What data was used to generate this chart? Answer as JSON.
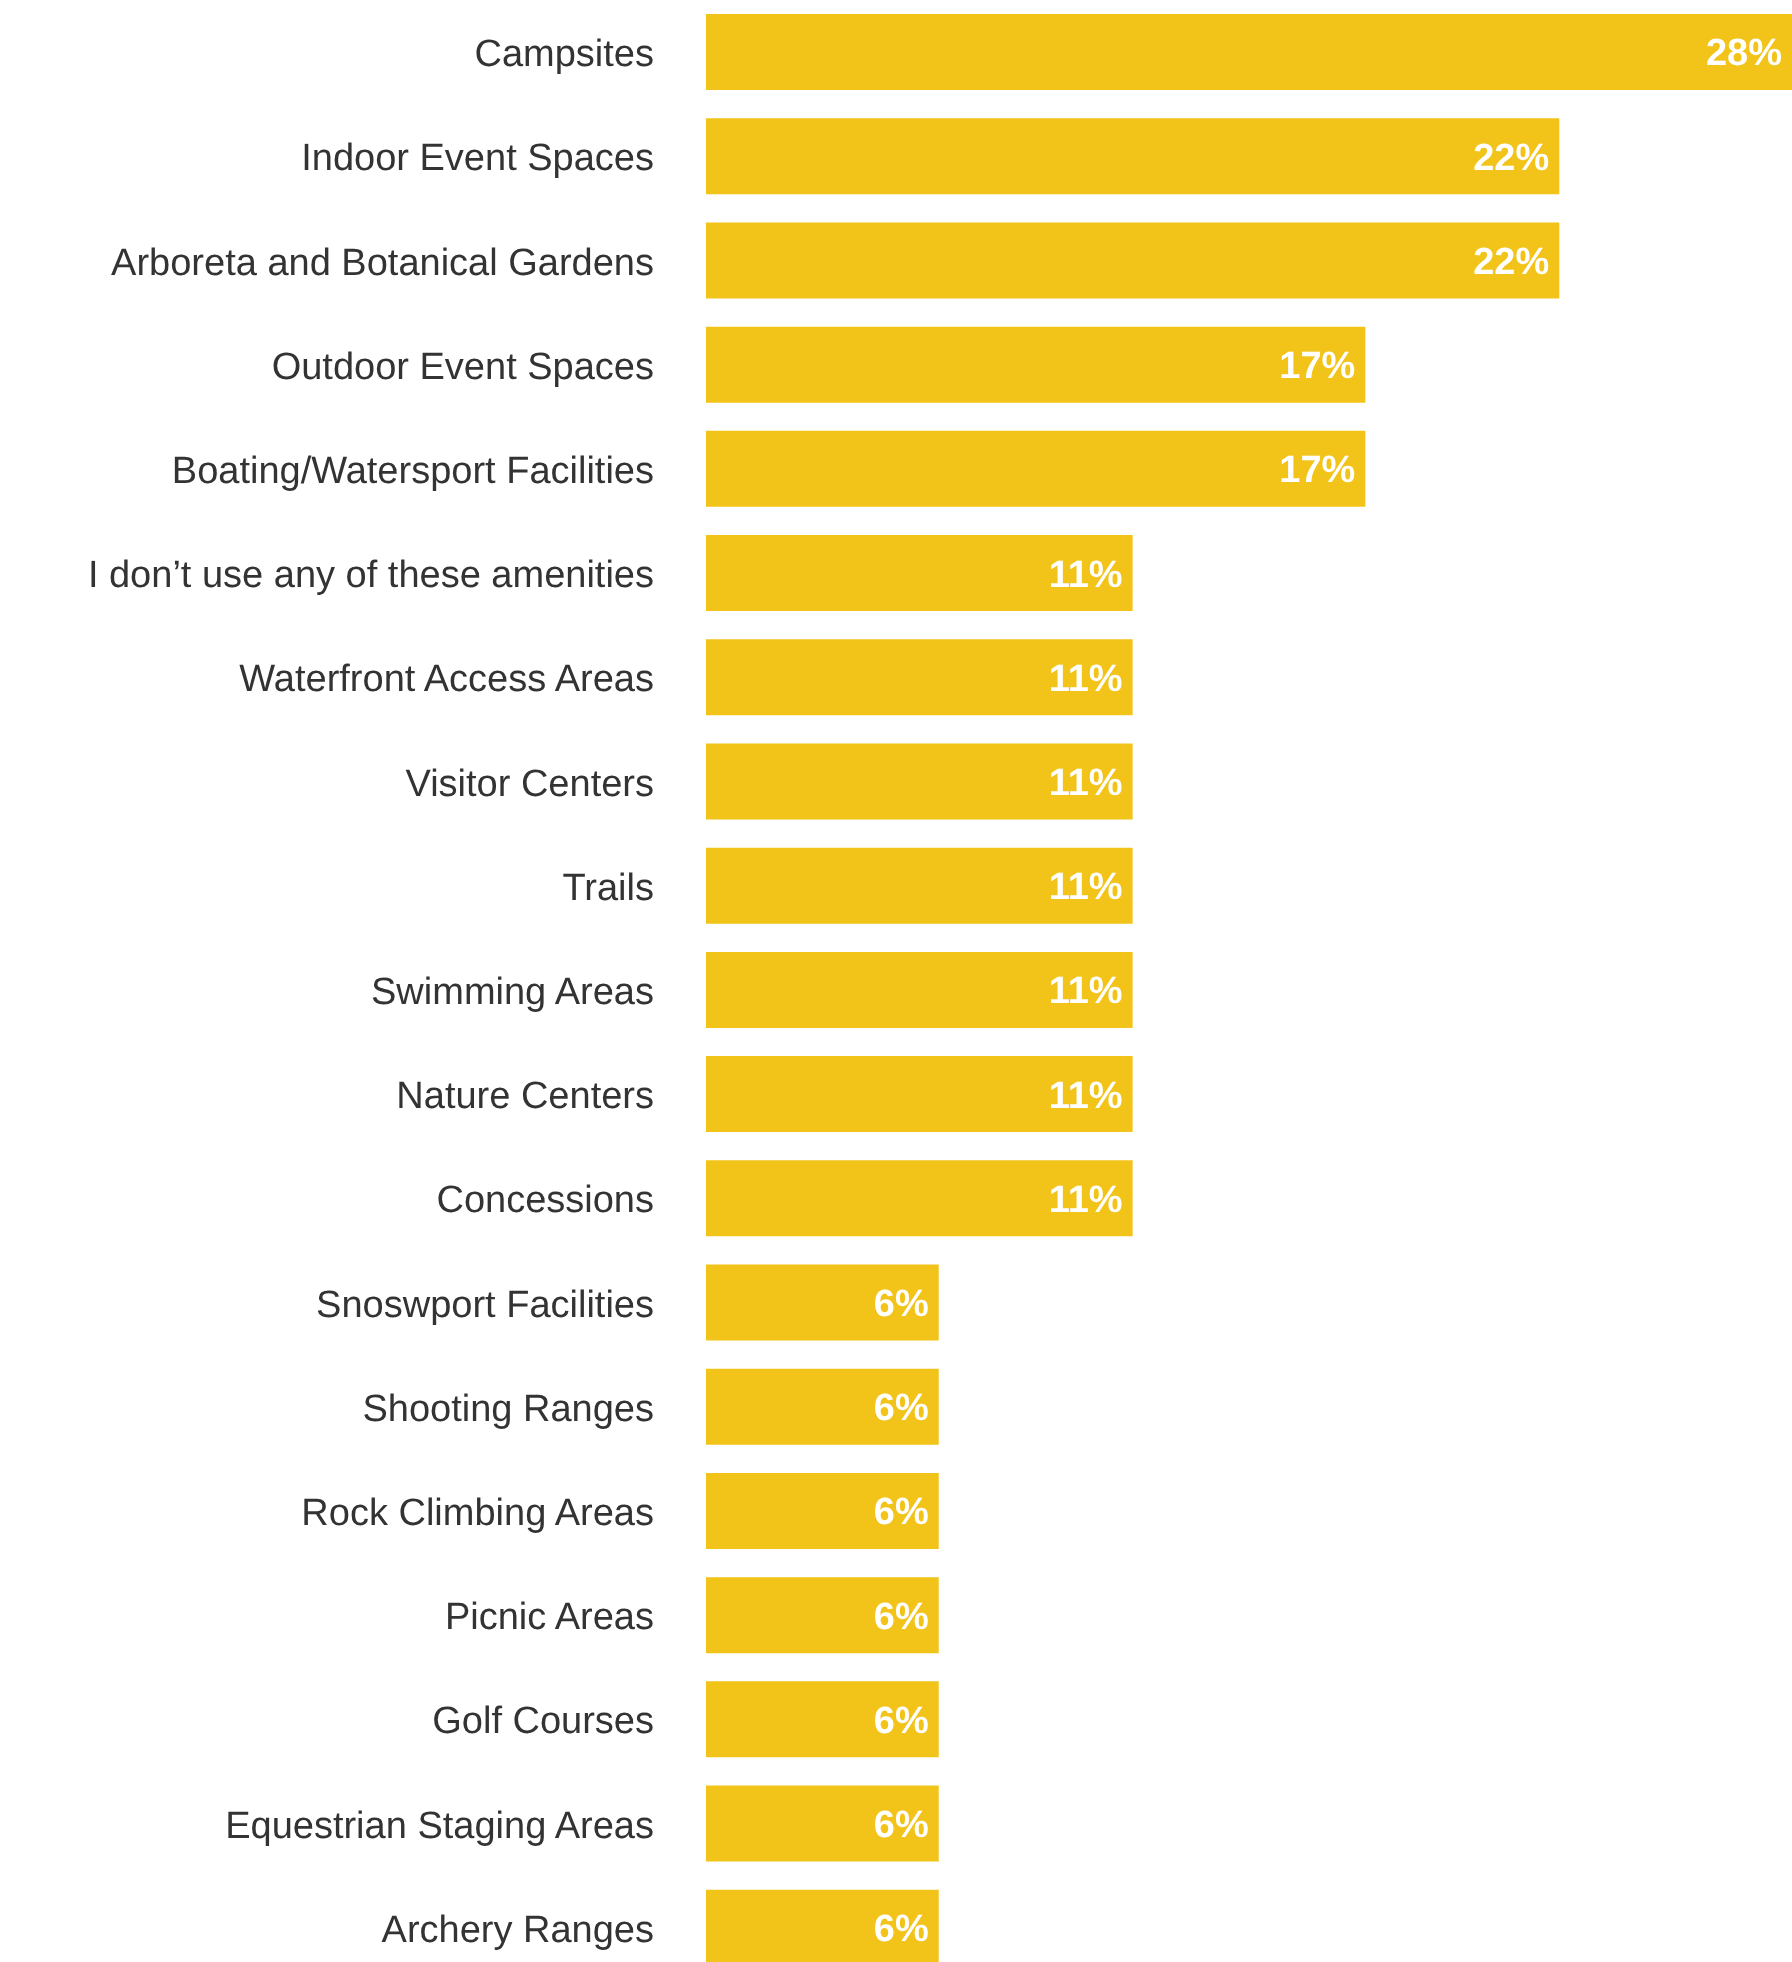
{
  "chart_data": {
    "type": "bar",
    "orientation": "horizontal",
    "tick_labels": "y",
    "grid": false,
    "legend": false,
    "categories": [
      "Campsites",
      "Indoor Event Spaces",
      "Arboreta and Botanical Gardens",
      "Outdoor Event Spaces",
      "Boating/Watersport Facilities",
      "I don’t use any of these amenities",
      "Waterfront Access Areas",
      "Visitor Centers",
      "Trails",
      "Swimming Areas",
      "Nature Centers",
      "Concessions",
      "Snoswport Facilities",
      "Shooting Ranges",
      "Rock Climbing Areas",
      "Picnic Areas",
      "Golf Courses",
      "Equestrian Staging  Areas",
      "Archery Ranges"
    ],
    "values": [
      28,
      22,
      22,
      17,
      17,
      11,
      11,
      11,
      11,
      11,
      11,
      11,
      6,
      6,
      6,
      6,
      6,
      6,
      6
    ],
    "value_labels": [
      "28%",
      "22%",
      "22%",
      "17%",
      "17%",
      "11%",
      "11%",
      "11%",
      "11%",
      "11%",
      "11%",
      "11%",
      "6%",
      "6%",
      "6%",
      "6%",
      "6%",
      "6%",
      "6%"
    ],
    "color": "#f2c318"
  }
}
